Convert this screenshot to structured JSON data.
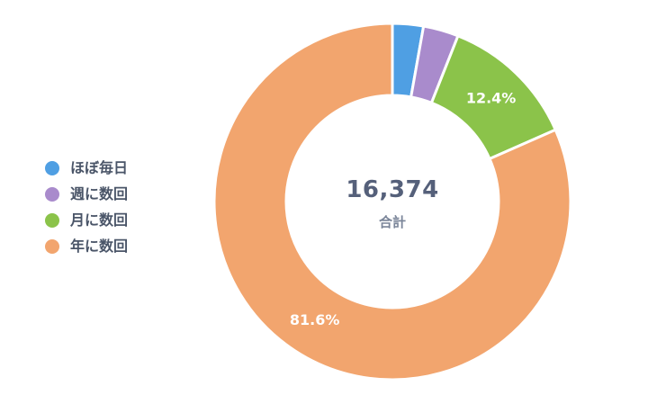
{
  "chart_data": {
    "type": "pie",
    "categories": [
      "ほぼ毎日",
      "週に数回",
      "月に数回",
      "年に数回"
    ],
    "values": [
      2.8,
      3.2,
      12.4,
      81.6
    ],
    "colors": [
      "#4f9fe3",
      "#a98bcc",
      "#8bc34a",
      "#f2a56e"
    ],
    "data_labels": [
      "",
      "",
      "12.4%",
      "81.6%"
    ],
    "total": "16,374",
    "total_label": "合計",
    "legend_position": "left",
    "donut": true
  }
}
